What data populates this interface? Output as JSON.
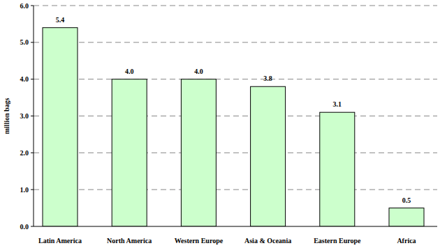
{
  "chart_data": {
    "type": "bar",
    "categories": [
      "Latin America",
      "North America",
      "Western Europe",
      "Asia & Oceania",
      "Eastern Europe",
      "Africa"
    ],
    "values": [
      5.4,
      4.0,
      4.0,
      3.8,
      3.1,
      0.5
    ],
    "value_labels": [
      "5.4",
      "4.0",
      "4.0",
      "3.8",
      "3.1",
      "0.5"
    ],
    "data_labels": true,
    "color": "#ccffcc",
    "y_label": "million bags",
    "ylim": [
      0,
      6
    ],
    "yticks": [
      {
        "value": 0,
        "label": "0.0"
      },
      {
        "value": 1,
        "label": "1.0"
      },
      {
        "value": 2,
        "label": "2.0"
      },
      {
        "value": 3,
        "label": "3.0"
      },
      {
        "value": 4,
        "label": "4.0"
      },
      {
        "value": 5,
        "label": "5.0"
      },
      {
        "value": 6,
        "label": "6.0"
      }
    ],
    "grid": true
  }
}
